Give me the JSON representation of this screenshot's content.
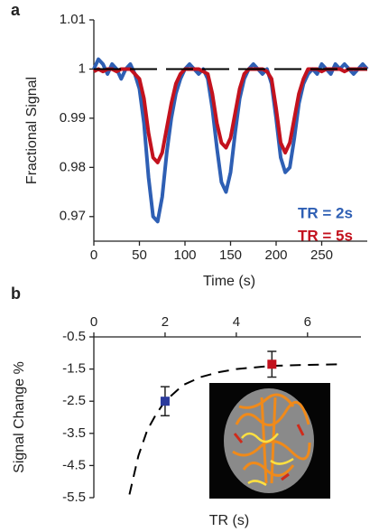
{
  "chart_data": [
    {
      "type": "line",
      "panel_label": "a",
      "x_label": "Time (s)",
      "y_label": "Fractional Signal",
      "x": [
        0,
        5,
        10,
        15,
        20,
        25,
        30,
        35,
        40,
        45,
        50,
        55,
        60,
        65,
        70,
        75,
        80,
        85,
        90,
        95,
        100,
        105,
        110,
        115,
        120,
        125,
        130,
        135,
        140,
        145,
        150,
        155,
        160,
        165,
        170,
        175,
        180,
        185,
        190,
        195,
        200,
        205,
        210,
        215,
        220,
        225,
        230,
        235,
        240,
        245,
        250,
        255,
        260,
        265,
        270,
        275,
        280,
        285,
        290,
        295,
        300
      ],
      "series": [
        {
          "name": "TR = 2s",
          "color": "#2e5fb4",
          "values": [
            1.0,
            1.002,
            1.001,
            0.999,
            1.001,
            1.0,
            0.998,
            1.0,
            1.001,
            0.999,
            0.996,
            0.989,
            0.978,
            0.97,
            0.969,
            0.974,
            0.983,
            0.99,
            0.995,
            0.998,
            1.0,
            1.001,
            1.0,
            0.999,
            1.0,
            0.998,
            0.992,
            0.984,
            0.977,
            0.975,
            0.979,
            0.987,
            0.994,
            0.998,
            1.0,
            1.001,
            1.0,
            0.999,
            1.0,
            0.997,
            0.99,
            0.982,
            0.979,
            0.98,
            0.986,
            0.993,
            0.997,
            0.999,
            1.0,
            0.999,
            1.001,
            1.0,
            0.999,
            1.001,
            1.0,
            1.001,
            1.0,
            0.999,
            1.0,
            1.001,
            1.0
          ]
        },
        {
          "name": "TR = 5s",
          "color": "#c3121e",
          "values": [
            0.9995,
            1.0,
            0.9995,
            1.0,
            1.0,
            0.9995,
            1.0,
            1.0,
            1.0,
            0.999,
            0.998,
            0.994,
            0.987,
            0.982,
            0.981,
            0.983,
            0.988,
            0.993,
            0.997,
            0.999,
            1.0,
            1.0,
            1.0,
            1.0,
            0.9995,
            0.999,
            0.995,
            0.989,
            0.985,
            0.984,
            0.986,
            0.991,
            0.996,
            0.999,
            1.0,
            1.0,
            1.0,
            1.0,
            0.9995,
            0.998,
            0.992,
            0.985,
            0.983,
            0.985,
            0.99,
            0.995,
            0.998,
            1.0,
            1.0,
            1.0,
            0.9995,
            1.0,
            1.0,
            1.0,
            1.0,
            0.9995,
            1.0,
            1.0,
            1.0,
            1.0,
            1.0
          ]
        }
      ],
      "reference_y": 1,
      "xlim": [
        0,
        300
      ],
      "xticks": [
        0,
        50,
        100,
        150,
        200,
        250
      ],
      "ylim": [
        0.965,
        1.01
      ],
      "yticks": [
        0.97,
        0.98,
        0.99,
        1,
        1.01
      ]
    },
    {
      "type": "scatter",
      "panel_label": "b",
      "x_label": "TR (s)",
      "y_label": "Signal Change %",
      "series": [
        {
          "color": "#2b3a9c",
          "x": [
            2
          ],
          "values": [
            -2.5
          ],
          "errors": [
            0.45
          ]
        },
        {
          "color": "#c3121e",
          "x": [
            5
          ],
          "values": [
            -1.35
          ],
          "errors": [
            0.4
          ]
        }
      ],
      "fit": {
        "color": "#000000",
        "x": [
          1.0,
          1.25,
          1.5,
          1.75,
          2,
          2.5,
          3,
          3.5,
          4,
          5,
          6,
          7
        ],
        "values": [
          -5.4,
          -4.2,
          -3.4,
          -2.9,
          -2.5,
          -2.0,
          -1.75,
          -1.6,
          -1.5,
          -1.4,
          -1.37,
          -1.35
        ]
      },
      "xlim": [
        0,
        7.5
      ],
      "xticks": [
        0,
        2,
        4,
        6
      ],
      "ylim": [
        -5.5,
        -0.5
      ],
      "yticks": [
        -0.5,
        -1.5,
        -2.5,
        -3.5,
        -4.5,
        -5.5
      ]
    }
  ]
}
